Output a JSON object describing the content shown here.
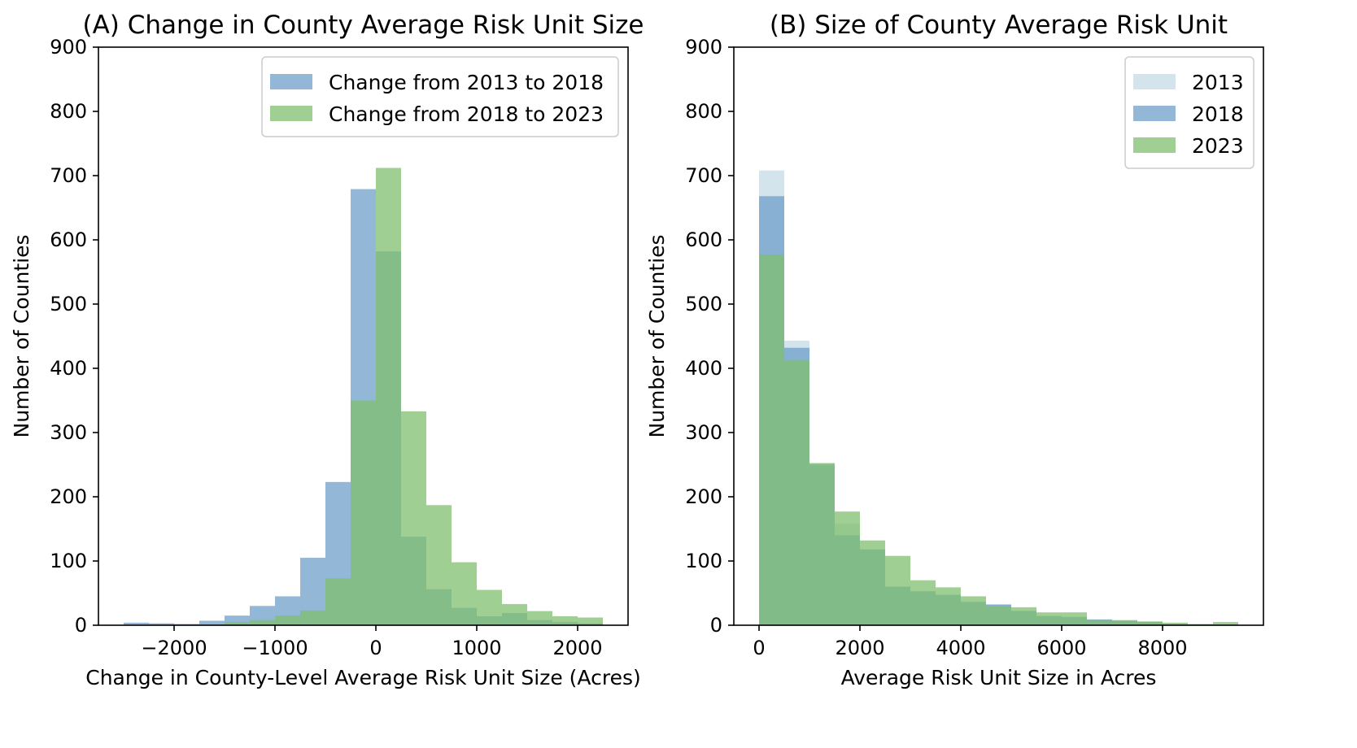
{
  "chart_data": [
    {
      "type": "histogram",
      "title": "(A) Change in County Average Risk Unit Size",
      "xlabel": "Change in County-Level Average Risk Unit Size (Acres)",
      "ylabel": "Number of Counties",
      "xlim": [
        -2750,
        2500
      ],
      "ylim": [
        0,
        900
      ],
      "xticks": [
        -2000,
        -1000,
        0,
        1000,
        2000
      ],
      "xtick_labels": [
        "−2000",
        "−1000",
        "0",
        "1000",
        "2000"
      ],
      "yticks": [
        0,
        100,
        200,
        300,
        400,
        500,
        600,
        700,
        800,
        900
      ],
      "legend_position": "top-right",
      "grid": false,
      "series": [
        {
          "name": "Change from 2013 to 2018",
          "color": "#6f9fca",
          "bins": [
            {
              "x0": -2500,
              "x1": -2250,
              "count": 4
            },
            {
              "x0": -2250,
              "x1": -2000,
              "count": 3
            },
            {
              "x0": -2000,
              "x1": -1750,
              "count": 2
            },
            {
              "x0": -1750,
              "x1": -1500,
              "count": 7
            },
            {
              "x0": -1500,
              "x1": -1250,
              "count": 15
            },
            {
              "x0": -1250,
              "x1": -1000,
              "count": 30
            },
            {
              "x0": -1000,
              "x1": -750,
              "count": 45
            },
            {
              "x0": -750,
              "x1": -500,
              "count": 105
            },
            {
              "x0": -500,
              "x1": -250,
              "count": 223
            },
            {
              "x0": -250,
              "x1": 0,
              "count": 679
            },
            {
              "x0": 0,
              "x1": 250,
              "count": 582
            },
            {
              "x0": 250,
              "x1": 500,
              "count": 138
            },
            {
              "x0": 500,
              "x1": 750,
              "count": 56
            },
            {
              "x0": 750,
              "x1": 1000,
              "count": 27
            },
            {
              "x0": 1000,
              "x1": 1250,
              "count": 14
            },
            {
              "x0": 1250,
              "x1": 1500,
              "count": 19
            },
            {
              "x0": 1500,
              "x1": 1750,
              "count": 8
            },
            {
              "x0": 1750,
              "x1": 2000,
              "count": 5
            },
            {
              "x0": 2000,
              "x1": 2250,
              "count": 3
            }
          ]
        },
        {
          "name": "Change from 2018 to 2023",
          "color": "#7fbf6e",
          "bins": [
            {
              "x0": -1500,
              "x1": -1250,
              "count": 5
            },
            {
              "x0": -1250,
              "x1": -1000,
              "count": 8
            },
            {
              "x0": -1000,
              "x1": -750,
              "count": 15
            },
            {
              "x0": -750,
              "x1": -500,
              "count": 23
            },
            {
              "x0": -500,
              "x1": -250,
              "count": 73
            },
            {
              "x0": -250,
              "x1": 0,
              "count": 350
            },
            {
              "x0": 0,
              "x1": 250,
              "count": 712
            },
            {
              "x0": 250,
              "x1": 500,
              "count": 333
            },
            {
              "x0": 500,
              "x1": 750,
              "count": 187
            },
            {
              "x0": 750,
              "x1": 1000,
              "count": 98
            },
            {
              "x0": 1000,
              "x1": 1250,
              "count": 55
            },
            {
              "x0": 1250,
              "x1": 1500,
              "count": 33
            },
            {
              "x0": 1500,
              "x1": 1750,
              "count": 22
            },
            {
              "x0": 1750,
              "x1": 2000,
              "count": 14
            },
            {
              "x0": 2000,
              "x1": 2250,
              "count": 12
            }
          ]
        }
      ]
    },
    {
      "type": "histogram",
      "title": "(B) Size of County Average Risk Unit",
      "xlabel": "Average Risk Unit Size in Acres",
      "ylabel": "Number of Counties",
      "xlim": [
        -500,
        10000
      ],
      "ylim": [
        0,
        900
      ],
      "xticks": [
        0,
        2000,
        4000,
        6000,
        8000
      ],
      "xtick_labels": [
        "0",
        "2000",
        "4000",
        "6000",
        "8000"
      ],
      "yticks": [
        0,
        100,
        200,
        300,
        400,
        500,
        600,
        700,
        800,
        900
      ],
      "legend_position": "top-right",
      "grid": false,
      "series": [
        {
          "name": "2013",
          "color": "#c5dbe6",
          "bins": [
            {
              "x0": 0,
              "x1": 500,
              "count": 708
            },
            {
              "x0": 500,
              "x1": 1000,
              "count": 443
            },
            {
              "x0": 1000,
              "x1": 1500,
              "count": 253
            },
            {
              "x0": 1500,
              "x1": 2000,
              "count": 158
            },
            {
              "x0": 2000,
              "x1": 2500,
              "count": 118
            },
            {
              "x0": 2500,
              "x1": 3000,
              "count": 60
            },
            {
              "x0": 3000,
              "x1": 3500,
              "count": 52
            },
            {
              "x0": 3500,
              "x1": 4000,
              "count": 48
            },
            {
              "x0": 4000,
              "x1": 4500,
              "count": 37
            },
            {
              "x0": 4500,
              "x1": 5000,
              "count": 33
            },
            {
              "x0": 5000,
              "x1": 5500,
              "count": 23
            },
            {
              "x0": 5500,
              "x1": 6000,
              "count": 15
            },
            {
              "x0": 6000,
              "x1": 6500,
              "count": 12
            },
            {
              "x0": 6500,
              "x1": 7000,
              "count": 9
            },
            {
              "x0": 7000,
              "x1": 7500,
              "count": 7
            },
            {
              "x0": 7500,
              "x1": 8000,
              "count": 5
            },
            {
              "x0": 8000,
              "x1": 8500,
              "count": 2
            },
            {
              "x0": 8500,
              "x1": 9000,
              "count": 1
            },
            {
              "x0": 9000,
              "x1": 9500,
              "count": 1
            }
          ]
        },
        {
          "name": "2018",
          "color": "#6f9fca",
          "bins": [
            {
              "x0": 0,
              "x1": 500,
              "count": 668
            },
            {
              "x0": 500,
              "x1": 1000,
              "count": 432
            },
            {
              "x0": 1000,
              "x1": 1500,
              "count": 250
            },
            {
              "x0": 1500,
              "x1": 2000,
              "count": 140
            },
            {
              "x0": 2000,
              "x1": 2500,
              "count": 118
            },
            {
              "x0": 2500,
              "x1": 3000,
              "count": 60
            },
            {
              "x0": 3000,
              "x1": 3500,
              "count": 53
            },
            {
              "x0": 3500,
              "x1": 4000,
              "count": 47
            },
            {
              "x0": 4000,
              "x1": 4500,
              "count": 36
            },
            {
              "x0": 4500,
              "x1": 5000,
              "count": 32
            },
            {
              "x0": 5000,
              "x1": 5500,
              "count": 22
            },
            {
              "x0": 5500,
              "x1": 6000,
              "count": 14
            },
            {
              "x0": 6000,
              "x1": 6500,
              "count": 13
            },
            {
              "x0": 6500,
              "x1": 7000,
              "count": 9
            },
            {
              "x0": 7000,
              "x1": 7500,
              "count": 7
            },
            {
              "x0": 7500,
              "x1": 8000,
              "count": 5
            },
            {
              "x0": 8000,
              "x1": 8500,
              "count": 2
            },
            {
              "x0": 8500,
              "x1": 9000,
              "count": 1
            },
            {
              "x0": 9000,
              "x1": 9500,
              "count": 1
            }
          ]
        },
        {
          "name": "2023",
          "color": "#7fbf6e",
          "bins": [
            {
              "x0": 0,
              "x1": 500,
              "count": 577
            },
            {
              "x0": 500,
              "x1": 1000,
              "count": 413
            },
            {
              "x0": 1000,
              "x1": 1500,
              "count": 252
            },
            {
              "x0": 1500,
              "x1": 2000,
              "count": 177
            },
            {
              "x0": 2000,
              "x1": 2500,
              "count": 132
            },
            {
              "x0": 2500,
              "x1": 3000,
              "count": 108
            },
            {
              "x0": 3000,
              "x1": 3500,
              "count": 70
            },
            {
              "x0": 3500,
              "x1": 4000,
              "count": 59
            },
            {
              "x0": 4000,
              "x1": 4500,
              "count": 45
            },
            {
              "x0": 4500,
              "x1": 5000,
              "count": 30
            },
            {
              "x0": 5000,
              "x1": 5500,
              "count": 28
            },
            {
              "x0": 5500,
              "x1": 6000,
              "count": 20
            },
            {
              "x0": 6000,
              "x1": 6500,
              "count": 20
            },
            {
              "x0": 6500,
              "x1": 7000,
              "count": 8
            },
            {
              "x0": 7000,
              "x1": 7500,
              "count": 8
            },
            {
              "x0": 7500,
              "x1": 8000,
              "count": 6
            },
            {
              "x0": 8000,
              "x1": 8500,
              "count": 4
            },
            {
              "x0": 8500,
              "x1": 9000,
              "count": 2
            },
            {
              "x0": 9000,
              "x1": 9500,
              "count": 5
            }
          ]
        }
      ]
    }
  ]
}
